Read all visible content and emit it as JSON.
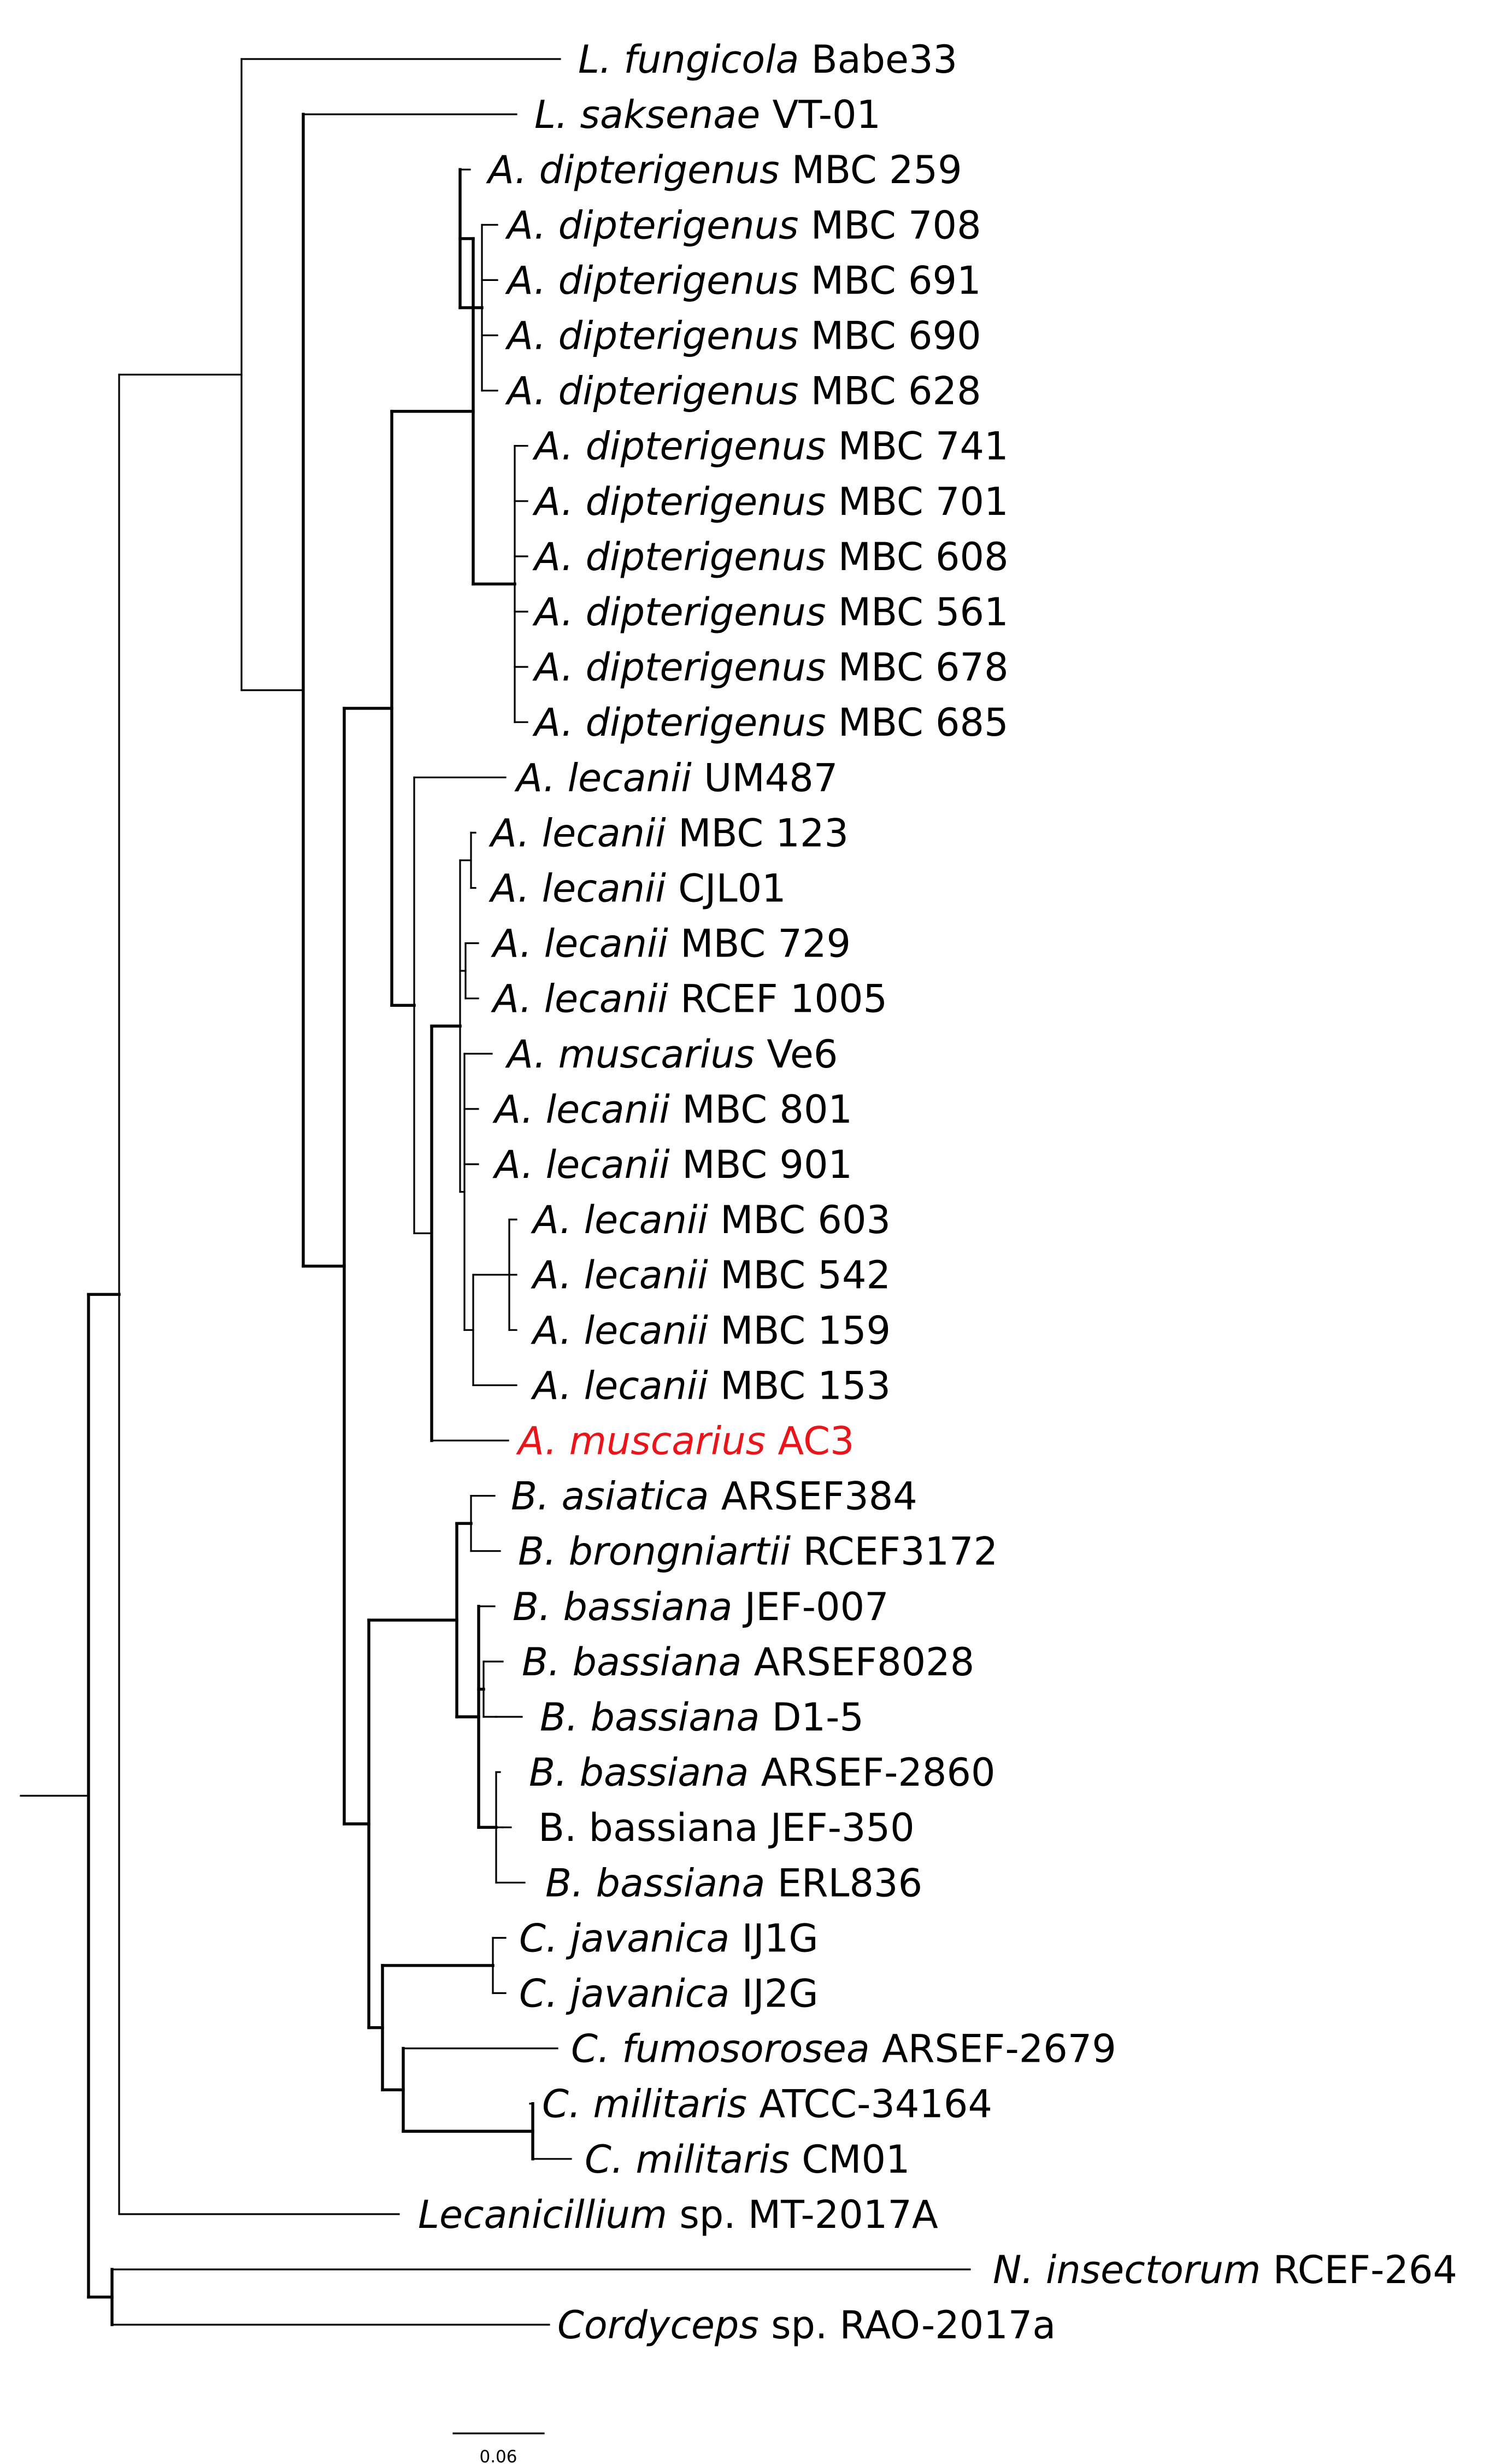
{
  "figure": {
    "type": "phylogenetic-tree",
    "highlight_color": "#e8161b",
    "text_color": "#000000"
  },
  "taxa": [
    {
      "genus": "L. fungicola",
      "strain": "Babe33",
      "highlight": false
    },
    {
      "genus": "L. saksenae",
      "strain": "VT-01",
      "highlight": false
    },
    {
      "genus": "A. dipterigenus",
      "strain": "MBC 259",
      "highlight": false
    },
    {
      "genus": "A. dipterigenus",
      "strain": "MBC 708",
      "highlight": false
    },
    {
      "genus": "A. dipterigenus",
      "strain": "MBC 691",
      "highlight": false
    },
    {
      "genus": "A. dipterigenus",
      "strain": "MBC 690",
      "highlight": false
    },
    {
      "genus": "A. dipterigenus",
      "strain": "MBC 628",
      "highlight": false
    },
    {
      "genus": "A. dipterigenus",
      "strain": "MBC 741",
      "highlight": false
    },
    {
      "genus": "A. dipterigenus",
      "strain": "MBC 701",
      "highlight": false
    },
    {
      "genus": "A. dipterigenus",
      "strain": "MBC 608",
      "highlight": false
    },
    {
      "genus": "A. dipterigenus",
      "strain": "MBC 561",
      "highlight": false
    },
    {
      "genus": "A. dipterigenus",
      "strain": "MBC 678",
      "highlight": false
    },
    {
      "genus": "A. dipterigenus",
      "strain": "MBC 685",
      "highlight": false
    },
    {
      "genus": "A. lecanii",
      "strain": "UM487",
      "highlight": false
    },
    {
      "genus": "A. lecanii",
      "strain": "MBC 123",
      "highlight": false
    },
    {
      "genus": "A. lecanii",
      "strain": "CJL01",
      "highlight": false
    },
    {
      "genus": "A. lecanii",
      "strain": "MBC 729",
      "highlight": false
    },
    {
      "genus": "A. lecanii",
      "strain": "RCEF 1005",
      "highlight": false
    },
    {
      "genus": "A. muscarius",
      "strain": "Ve6",
      "highlight": false
    },
    {
      "genus": "A. lecanii",
      "strain": "MBC 801",
      "highlight": false
    },
    {
      "genus": "A. lecanii",
      "strain": "MBC 901",
      "highlight": false
    },
    {
      "genus": "A. lecanii",
      "strain": "MBC 603",
      "highlight": false
    },
    {
      "genus": "A. lecanii",
      "strain": "MBC 542",
      "highlight": false
    },
    {
      "genus": "A. lecanii",
      "strain": "MBC 159",
      "highlight": false
    },
    {
      "genus": "A. lecanii",
      "strain": "MBC 153",
      "highlight": false
    },
    {
      "genus": "A. muscarius",
      "strain": "AC3",
      "highlight": true
    },
    {
      "genus": "B. asiatica",
      "strain": "ARSEF384",
      "highlight": false
    },
    {
      "genus": "B. brongniartii",
      "strain": "RCEF3172",
      "highlight": false
    },
    {
      "genus": "B. bassiana",
      "strain": "JEF-007",
      "highlight": false
    },
    {
      "genus": "B. bassiana",
      "strain": "ARSEF8028",
      "highlight": false
    },
    {
      "genus": "B. bassiana",
      "strain": "D1-5",
      "highlight": false
    },
    {
      "genus": "B. bassiana",
      "strain": "ARSEF-2860",
      "highlight": false
    },
    {
      "genus": "B. bassiana",
      "strain": "JEF-350",
      "highlight": false,
      "upright": true
    },
    {
      "genus": "B. bassiana",
      "strain": "ERL836",
      "highlight": false
    },
    {
      "genus": "C. javanica",
      "strain": "IJ1G",
      "highlight": false
    },
    {
      "genus": "C. javanica",
      "strain": "IJ2G",
      "highlight": false
    },
    {
      "genus": "C. fumosorosea",
      "strain": "ARSEF-2679",
      "highlight": false
    },
    {
      "genus": "C. militaris",
      "strain": "ATCC-34164",
      "highlight": false
    },
    {
      "genus": "C. militaris",
      "strain": "CM01",
      "highlight": false
    },
    {
      "genus": "Lecanicillium",
      "strain": "sp. MT-2017A",
      "highlight": false
    },
    {
      "genus": "N. insectorum",
      "strain": "RCEF-264",
      "highlight": false
    },
    {
      "genus": "Cordyceps",
      "strain": "sp. RAO-2017a",
      "highlight": false
    }
  ],
  "scale_bar": {
    "label": "0.06",
    "length": 0.06
  }
}
